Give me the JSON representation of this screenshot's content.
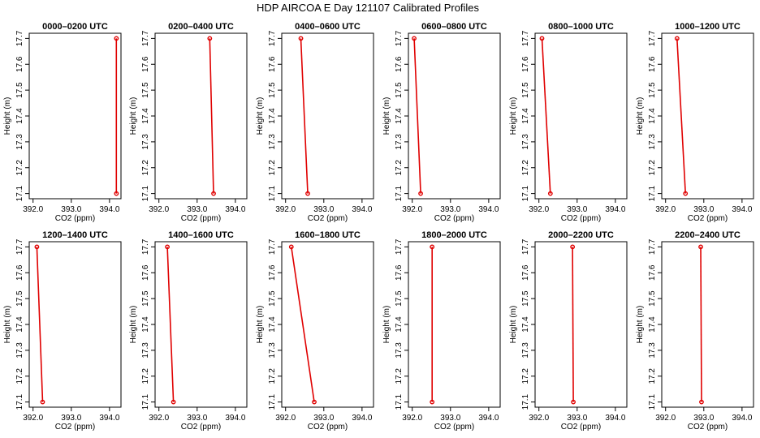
{
  "title": "HDP AIRCOA E   Day 121107  Calibrated Profiles",
  "colors": {
    "series": "#e00000",
    "frame": "#000000"
  },
  "chart_data": [
    {
      "type": "line",
      "title": "0000–0200 UTC",
      "xlabel": "CO2 (ppm)",
      "ylabel": "Height (m)",
      "xlim": [
        391.9,
        394.3
      ],
      "ylim": [
        17.08,
        17.72
      ],
      "xticks": [
        "392.0",
        "393.0",
        "394.0"
      ],
      "yticks": [
        "17.1",
        "17.2",
        "17.3",
        "17.4",
        "17.5",
        "17.6",
        "17.7"
      ],
      "series": [
        {
          "x": [
            394.18,
            394.18
          ],
          "y": [
            17.7,
            17.1
          ]
        }
      ]
    },
    {
      "type": "line",
      "title": "0200–0400 UTC",
      "xlabel": "CO2 (ppm)",
      "ylabel": "Height (m)",
      "xlim": [
        391.9,
        394.3
      ],
      "ylim": [
        17.08,
        17.72
      ],
      "xticks": [
        "392.0",
        "393.0",
        "394.0"
      ],
      "yticks": [
        "17.1",
        "17.2",
        "17.3",
        "17.4",
        "17.5",
        "17.6",
        "17.7"
      ],
      "series": [
        {
          "x": [
            393.33,
            393.43
          ],
          "y": [
            17.7,
            17.1
          ]
        }
      ]
    },
    {
      "type": "line",
      "title": "0400–0600 UTC",
      "xlabel": "CO2 (ppm)",
      "ylabel": "Height (m)",
      "xlim": [
        391.9,
        394.3
      ],
      "ylim": [
        17.08,
        17.72
      ],
      "xticks": [
        "392.0",
        "393.0",
        "394.0"
      ],
      "yticks": [
        "17.1",
        "17.2",
        "17.3",
        "17.4",
        "17.5",
        "17.6",
        "17.7"
      ],
      "series": [
        {
          "x": [
            392.4,
            392.58
          ],
          "y": [
            17.7,
            17.1
          ]
        }
      ]
    },
    {
      "type": "line",
      "title": "0600–0800 UTC",
      "xlabel": "CO2 (ppm)",
      "ylabel": "Height (m)",
      "xlim": [
        391.9,
        394.3
      ],
      "ylim": [
        17.08,
        17.72
      ],
      "xticks": [
        "392.0",
        "393.0",
        "394.0"
      ],
      "yticks": [
        "17.1",
        "17.2",
        "17.3",
        "17.4",
        "17.5",
        "17.6",
        "17.7"
      ],
      "series": [
        {
          "x": [
            392.05,
            392.22
          ],
          "y": [
            17.7,
            17.1
          ]
        }
      ]
    },
    {
      "type": "line",
      "title": "0800–1000 UTC",
      "xlabel": "CO2 (ppm)",
      "ylabel": "Height (m)",
      "xlim": [
        391.9,
        394.3
      ],
      "ylim": [
        17.08,
        17.72
      ],
      "xticks": [
        "392.0",
        "393.0",
        "394.0"
      ],
      "yticks": [
        "17.1",
        "17.2",
        "17.3",
        "17.4",
        "17.5",
        "17.6",
        "17.7"
      ],
      "series": [
        {
          "x": [
            392.08,
            392.3
          ],
          "y": [
            17.7,
            17.1
          ]
        }
      ]
    },
    {
      "type": "line",
      "title": "1000–1200 UTC",
      "xlabel": "CO2 (ppm)",
      "ylabel": "Height (m)",
      "xlim": [
        391.9,
        394.3
      ],
      "ylim": [
        17.08,
        17.72
      ],
      "xticks": [
        "392.0",
        "393.0",
        "394.0"
      ],
      "yticks": [
        "17.1",
        "17.2",
        "17.3",
        "17.4",
        "17.5",
        "17.6",
        "17.7"
      ],
      "series": [
        {
          "x": [
            392.3,
            392.52
          ],
          "y": [
            17.7,
            17.1
          ]
        }
      ]
    },
    {
      "type": "line",
      "title": "1200–1400 UTC",
      "xlabel": "CO2 (ppm)",
      "ylabel": "Height (m)",
      "xlim": [
        391.9,
        394.3
      ],
      "ylim": [
        17.08,
        17.72
      ],
      "xticks": [
        "392.0",
        "393.0",
        "394.0"
      ],
      "yticks": [
        "17.1",
        "17.2",
        "17.3",
        "17.4",
        "17.5",
        "17.6",
        "17.7"
      ],
      "series": [
        {
          "x": [
            392.1,
            392.25
          ],
          "y": [
            17.7,
            17.1
          ]
        }
      ]
    },
    {
      "type": "line",
      "title": "1400–1600 UTC",
      "xlabel": "CO2 (ppm)",
      "ylabel": "Height (m)",
      "xlim": [
        391.9,
        394.3
      ],
      "ylim": [
        17.08,
        17.72
      ],
      "xticks": [
        "392.0",
        "393.0",
        "394.0"
      ],
      "yticks": [
        "17.1",
        "17.2",
        "17.3",
        "17.4",
        "17.5",
        "17.6",
        "17.7"
      ],
      "series": [
        {
          "x": [
            392.22,
            392.38
          ],
          "y": [
            17.7,
            17.1
          ]
        }
      ]
    },
    {
      "type": "line",
      "title": "1600–1800 UTC",
      "xlabel": "CO2 (ppm)",
      "ylabel": "Height (m)",
      "xlim": [
        391.9,
        394.3
      ],
      "ylim": [
        17.08,
        17.72
      ],
      "xticks": [
        "392.0",
        "393.0",
        "394.0"
      ],
      "yticks": [
        "17.1",
        "17.2",
        "17.3",
        "17.4",
        "17.5",
        "17.6",
        "17.7"
      ],
      "series": [
        {
          "x": [
            392.15,
            392.75
          ],
          "y": [
            17.7,
            17.1
          ]
        }
      ]
    },
    {
      "type": "line",
      "title": "1800–2000 UTC",
      "xlabel": "CO2 (ppm)",
      "ylabel": "Height (m)",
      "xlim": [
        391.9,
        394.3
      ],
      "ylim": [
        17.08,
        17.72
      ],
      "xticks": [
        "392.0",
        "393.0",
        "394.0"
      ],
      "yticks": [
        "17.1",
        "17.2",
        "17.3",
        "17.4",
        "17.5",
        "17.6",
        "17.7"
      ],
      "series": [
        {
          "x": [
            392.52,
            392.52
          ],
          "y": [
            17.7,
            17.1
          ]
        }
      ]
    },
    {
      "type": "line",
      "title": "2000–2200 UTC",
      "xlabel": "CO2 (ppm)",
      "ylabel": "Height (m)",
      "xlim": [
        391.9,
        394.3
      ],
      "ylim": [
        17.08,
        17.72
      ],
      "xticks": [
        "392.0",
        "393.0",
        "394.0"
      ],
      "yticks": [
        "17.1",
        "17.2",
        "17.3",
        "17.4",
        "17.5",
        "17.6",
        "17.7"
      ],
      "series": [
        {
          "x": [
            392.88,
            392.9
          ],
          "y": [
            17.7,
            17.1
          ]
        }
      ]
    },
    {
      "type": "line",
      "title": "2200–2400 UTC",
      "xlabel": "CO2 (ppm)",
      "ylabel": "Height (m)",
      "xlim": [
        391.9,
        394.3
      ],
      "ylim": [
        17.08,
        17.72
      ],
      "xticks": [
        "392.0",
        "393.0",
        "394.0"
      ],
      "yticks": [
        "17.1",
        "17.2",
        "17.3",
        "17.4",
        "17.5",
        "17.6",
        "17.7"
      ],
      "series": [
        {
          "x": [
            392.92,
            392.94
          ],
          "y": [
            17.7,
            17.1
          ]
        }
      ]
    }
  ]
}
